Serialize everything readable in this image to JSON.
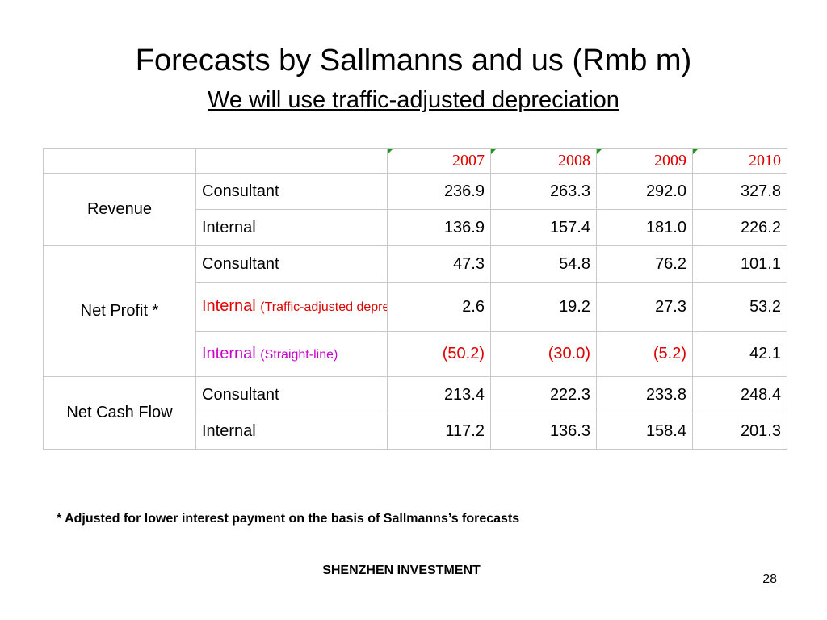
{
  "slide": {
    "title": "Forecasts by Sallmanns and us (Rmb m)",
    "subtitle": "We will use traffic-adjusted depreciation",
    "footnote": "* Adjusted for lower interest payment on the basis of Sallmanns’s forecasts",
    "footer": "SHENZHEN INVESTMENT",
    "page_number": "28"
  },
  "table": {
    "years": [
      "2007",
      "2008",
      "2009",
      "2010"
    ],
    "groups": {
      "revenue": "Revenue",
      "net_profit": "Net Profit *",
      "net_cash_flow": "Net Cash Flow"
    },
    "rows": {
      "revenue_consultant": {
        "label": "Consultant",
        "values": [
          "236.9",
          "263.3",
          "292.0",
          "327.8"
        ]
      },
      "revenue_internal": {
        "label": "Internal",
        "values": [
          "136.9",
          "157.4",
          "181.0",
          "226.2"
        ]
      },
      "np_consultant": {
        "label": "Consultant",
        "values": [
          "47.3",
          "54.8",
          "76.2",
          "101.1"
        ]
      },
      "np_internal_traffic": {
        "label": "Internal",
        "note": "(Traffic-adjusted depreciation)",
        "values": [
          "2.6",
          "19.2",
          "27.3",
          "53.2"
        ]
      },
      "np_internal_straight": {
        "label": "Internal",
        "note": "(Straight-line)",
        "values": [
          "(50.2)",
          "(30.0)",
          "(5.2)",
          "42.1"
        ]
      },
      "ncf_consultant": {
        "label": "Consultant",
        "values": [
          "213.4",
          "222.3",
          "233.8",
          "248.4"
        ]
      },
      "ncf_internal": {
        "label": "Internal",
        "values": [
          "117.2",
          "136.3",
          "158.4",
          "201.3"
        ]
      }
    },
    "colors": {
      "year": "#e00000",
      "negative": "#e00000",
      "straight_line": "#cc00cc",
      "marker": "#1a9a1a"
    }
  }
}
